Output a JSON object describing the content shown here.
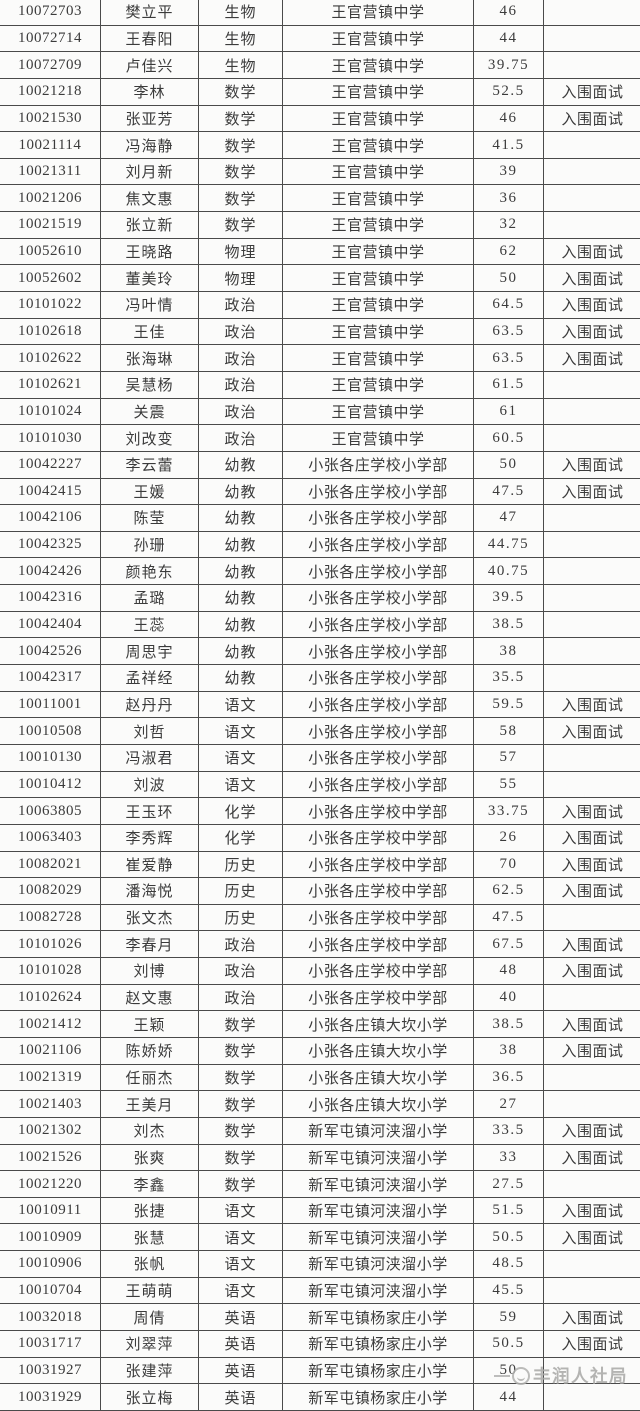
{
  "colors": {
    "page_background": "#fafaf9",
    "cell_background": "#fbfbfa",
    "table_border": "#4a4a4a",
    "text": "#3b3b3b",
    "watermark": "#a8a8a6"
  },
  "watermark": {
    "text": "丰润人社局",
    "icon": "bureau-emblem-icon"
  },
  "table": {
    "cell_roles": [
      "candidate-id",
      "candidate-name",
      "subject",
      "school",
      "score",
      "status"
    ],
    "rows": [
      [
        "10072703",
        "樊立平",
        "生物",
        "王官营镇中学",
        "46",
        ""
      ],
      [
        "10072714",
        "王春阳",
        "生物",
        "王官营镇中学",
        "44",
        ""
      ],
      [
        "10072709",
        "卢佳兴",
        "生物",
        "王官营镇中学",
        "39.75",
        ""
      ],
      [
        "10021218",
        "李林",
        "数学",
        "王官营镇中学",
        "52.5",
        "入围面试"
      ],
      [
        "10021530",
        "张亚芳",
        "数学",
        "王官营镇中学",
        "46",
        "入围面试"
      ],
      [
        "10021114",
        "冯海静",
        "数学",
        "王官营镇中学",
        "41.5",
        ""
      ],
      [
        "10021311",
        "刘月新",
        "数学",
        "王官营镇中学",
        "39",
        ""
      ],
      [
        "10021206",
        "焦文惠",
        "数学",
        "王官营镇中学",
        "36",
        ""
      ],
      [
        "10021519",
        "张立新",
        "数学",
        "王官营镇中学",
        "32",
        ""
      ],
      [
        "10052610",
        "王晓路",
        "物理",
        "王官营镇中学",
        "62",
        "入围面试"
      ],
      [
        "10052602",
        "董美玲",
        "物理",
        "王官营镇中学",
        "50",
        "入围面试"
      ],
      [
        "10101022",
        "冯叶情",
        "政治",
        "王官营镇中学",
        "64.5",
        "入围面试"
      ],
      [
        "10102618",
        "王佳",
        "政治",
        "王官营镇中学",
        "63.5",
        "入围面试"
      ],
      [
        "10102622",
        "张海琳",
        "政治",
        "王官营镇中学",
        "63.5",
        "入围面试"
      ],
      [
        "10102621",
        "吴慧杨",
        "政治",
        "王官营镇中学",
        "61.5",
        ""
      ],
      [
        "10101024",
        "关震",
        "政治",
        "王官营镇中学",
        "61",
        ""
      ],
      [
        "10101030",
        "刘改变",
        "政治",
        "王官营镇中学",
        "60.5",
        ""
      ],
      [
        "10042227",
        "李云蕾",
        "幼教",
        "小张各庄学校小学部",
        "50",
        "入围面试"
      ],
      [
        "10042415",
        "王媛",
        "幼教",
        "小张各庄学校小学部",
        "47.5",
        "入围面试"
      ],
      [
        "10042106",
        "陈莹",
        "幼教",
        "小张各庄学校小学部",
        "47",
        ""
      ],
      [
        "10042325",
        "孙珊",
        "幼教",
        "小张各庄学校小学部",
        "44.75",
        ""
      ],
      [
        "10042426",
        "颜艳东",
        "幼教",
        "小张各庄学校小学部",
        "40.75",
        ""
      ],
      [
        "10042316",
        "孟璐",
        "幼教",
        "小张各庄学校小学部",
        "39.5",
        ""
      ],
      [
        "10042404",
        "王蕊",
        "幼教",
        "小张各庄学校小学部",
        "38.5",
        ""
      ],
      [
        "10042526",
        "周思宇",
        "幼教",
        "小张各庄学校小学部",
        "38",
        ""
      ],
      [
        "10042317",
        "孟祥经",
        "幼教",
        "小张各庄学校小学部",
        "35.5",
        ""
      ],
      [
        "10011001",
        "赵丹丹",
        "语文",
        "小张各庄学校小学部",
        "59.5",
        "入围面试"
      ],
      [
        "10010508",
        "刘哲",
        "语文",
        "小张各庄学校小学部",
        "58",
        "入围面试"
      ],
      [
        "10010130",
        "冯淑君",
        "语文",
        "小张各庄学校小学部",
        "57",
        ""
      ],
      [
        "10010412",
        "刘波",
        "语文",
        "小张各庄学校小学部",
        "55",
        ""
      ],
      [
        "10063805",
        "王玉环",
        "化学",
        "小张各庄学校中学部",
        "33.75",
        "入围面试"
      ],
      [
        "10063403",
        "李秀辉",
        "化学",
        "小张各庄学校中学部",
        "26",
        "入围面试"
      ],
      [
        "10082021",
        "崔爱静",
        "历史",
        "小张各庄学校中学部",
        "70",
        "入围面试"
      ],
      [
        "10082029",
        "潘海悦",
        "历史",
        "小张各庄学校中学部",
        "62.5",
        "入围面试"
      ],
      [
        "10082728",
        "张文杰",
        "历史",
        "小张各庄学校中学部",
        "47.5",
        ""
      ],
      [
        "10101026",
        "李春月",
        "政治",
        "小张各庄学校中学部",
        "67.5",
        "入围面试"
      ],
      [
        "10101028",
        "刘博",
        "政治",
        "小张各庄学校中学部",
        "48",
        "入围面试"
      ],
      [
        "10102624",
        "赵文惠",
        "政治",
        "小张各庄学校中学部",
        "40",
        ""
      ],
      [
        "10021412",
        "王颖",
        "数学",
        "小张各庄镇大坎小学",
        "38.5",
        "入围面试"
      ],
      [
        "10021106",
        "陈娇娇",
        "数学",
        "小张各庄镇大坎小学",
        "38",
        "入围面试"
      ],
      [
        "10021319",
        "任丽杰",
        "数学",
        "小张各庄镇大坎小学",
        "36.5",
        ""
      ],
      [
        "10021403",
        "王美月",
        "数学",
        "小张各庄镇大坎小学",
        "27",
        ""
      ],
      [
        "10021302",
        "刘杰",
        "数学",
        "新军屯镇河浃溜小学",
        "33.5",
        "入围面试"
      ],
      [
        "10021526",
        "张爽",
        "数学",
        "新军屯镇河浃溜小学",
        "33",
        "入围面试"
      ],
      [
        "10021220",
        "李鑫",
        "数学",
        "新军屯镇河浃溜小学",
        "27.5",
        ""
      ],
      [
        "10010911",
        "张捷",
        "语文",
        "新军屯镇河浃溜小学",
        "51.5",
        "入围面试"
      ],
      [
        "10010909",
        "张慧",
        "语文",
        "新军屯镇河浃溜小学",
        "50.5",
        "入围面试"
      ],
      [
        "10010906",
        "张帆",
        "语文",
        "新军屯镇河浃溜小学",
        "48.5",
        ""
      ],
      [
        "10010704",
        "王萌萌",
        "语文",
        "新军屯镇河浃溜小学",
        "45.5",
        ""
      ],
      [
        "10032018",
        "周倩",
        "英语",
        "新军屯镇杨家庄小学",
        "59",
        "入围面试"
      ],
      [
        "10031717",
        "刘翠萍",
        "英语",
        "新军屯镇杨家庄小学",
        "50.5",
        "入围面试"
      ],
      [
        "10031927",
        "张建萍",
        "英语",
        "新军屯镇杨家庄小学",
        "50",
        ""
      ],
      [
        "10031929",
        "张立梅",
        "英语",
        "新军屯镇杨家庄小学",
        "44",
        ""
      ]
    ]
  }
}
